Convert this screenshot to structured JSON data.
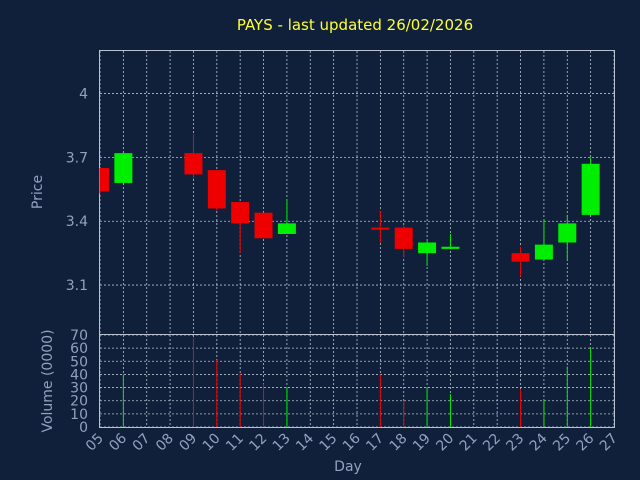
{
  "chart_data": {
    "type": "candlestick",
    "title": "PAYS - last updated 26/02/2026",
    "xlabel": "Day",
    "ylabel": "Price",
    "volume_label": "Volume (0000)",
    "days": [
      "05",
      "06",
      "07",
      "08",
      "09",
      "10",
      "11",
      "12",
      "13",
      "14",
      "15",
      "16",
      "17",
      "18",
      "19",
      "20",
      "21",
      "22",
      "23",
      "24",
      "25",
      "26",
      "27"
    ],
    "price_ylim": [
      2.87,
      4.2
    ],
    "price_ticks": [
      "3.1",
      "3.4",
      "3.7",
      "4"
    ],
    "volume_ylim": [
      0,
      70
    ],
    "volume_ticks": [
      "0",
      "10",
      "20",
      "30",
      "40",
      "50",
      "60",
      "70"
    ],
    "grid": true,
    "colors": {
      "up": "#00ee00",
      "down": "#ee0000"
    },
    "candles": [
      {
        "day": "05",
        "open": 3.65,
        "high": 3.65,
        "low": 3.53,
        "close": 3.54,
        "volume": 0
      },
      {
        "day": "06",
        "open": 3.58,
        "high": 3.72,
        "low": 3.58,
        "close": 3.72,
        "volume": 40
      },
      {
        "day": "09",
        "open": 3.72,
        "high": 3.81,
        "low": 3.6,
        "close": 3.62,
        "volume": 68
      },
      {
        "day": "10",
        "open": 3.64,
        "high": 3.64,
        "low": 3.45,
        "close": 3.46,
        "volume": 51
      },
      {
        "day": "11",
        "open": 3.49,
        "high": 3.49,
        "low": 3.25,
        "close": 3.39,
        "volume": 41
      },
      {
        "day": "12",
        "open": 3.44,
        "high": 3.44,
        "low": 3.32,
        "close": 3.32,
        "volume": 33
      },
      {
        "day": "13",
        "open": 3.34,
        "high": 3.5,
        "low": 3.34,
        "close": 3.39,
        "volume": 30
      },
      {
        "day": "17",
        "open": 3.37,
        "high": 3.45,
        "low": 3.3,
        "close": 3.36,
        "volume": 40
      },
      {
        "day": "18",
        "open": 3.37,
        "high": 3.38,
        "low": 3.23,
        "close": 3.27,
        "volume": 20
      },
      {
        "day": "19",
        "open": 3.25,
        "high": 3.31,
        "low": 3.19,
        "close": 3.3,
        "volume": 30
      },
      {
        "day": "20",
        "open": 3.27,
        "high": 3.34,
        "low": 3.27,
        "close": 3.28,
        "volume": 25
      },
      {
        "day": "23",
        "open": 3.25,
        "high": 3.28,
        "low": 3.14,
        "close": 3.21,
        "volume": 29
      },
      {
        "day": "24",
        "open": 3.22,
        "high": 3.41,
        "low": 3.22,
        "close": 3.29,
        "volume": 21
      },
      {
        "day": "25",
        "open": 3.3,
        "high": 3.43,
        "low": 3.22,
        "close": 3.39,
        "volume": 46
      },
      {
        "day": "26",
        "open": 3.43,
        "high": 3.7,
        "low": 3.43,
        "close": 3.67,
        "volume": 60
      }
    ]
  }
}
